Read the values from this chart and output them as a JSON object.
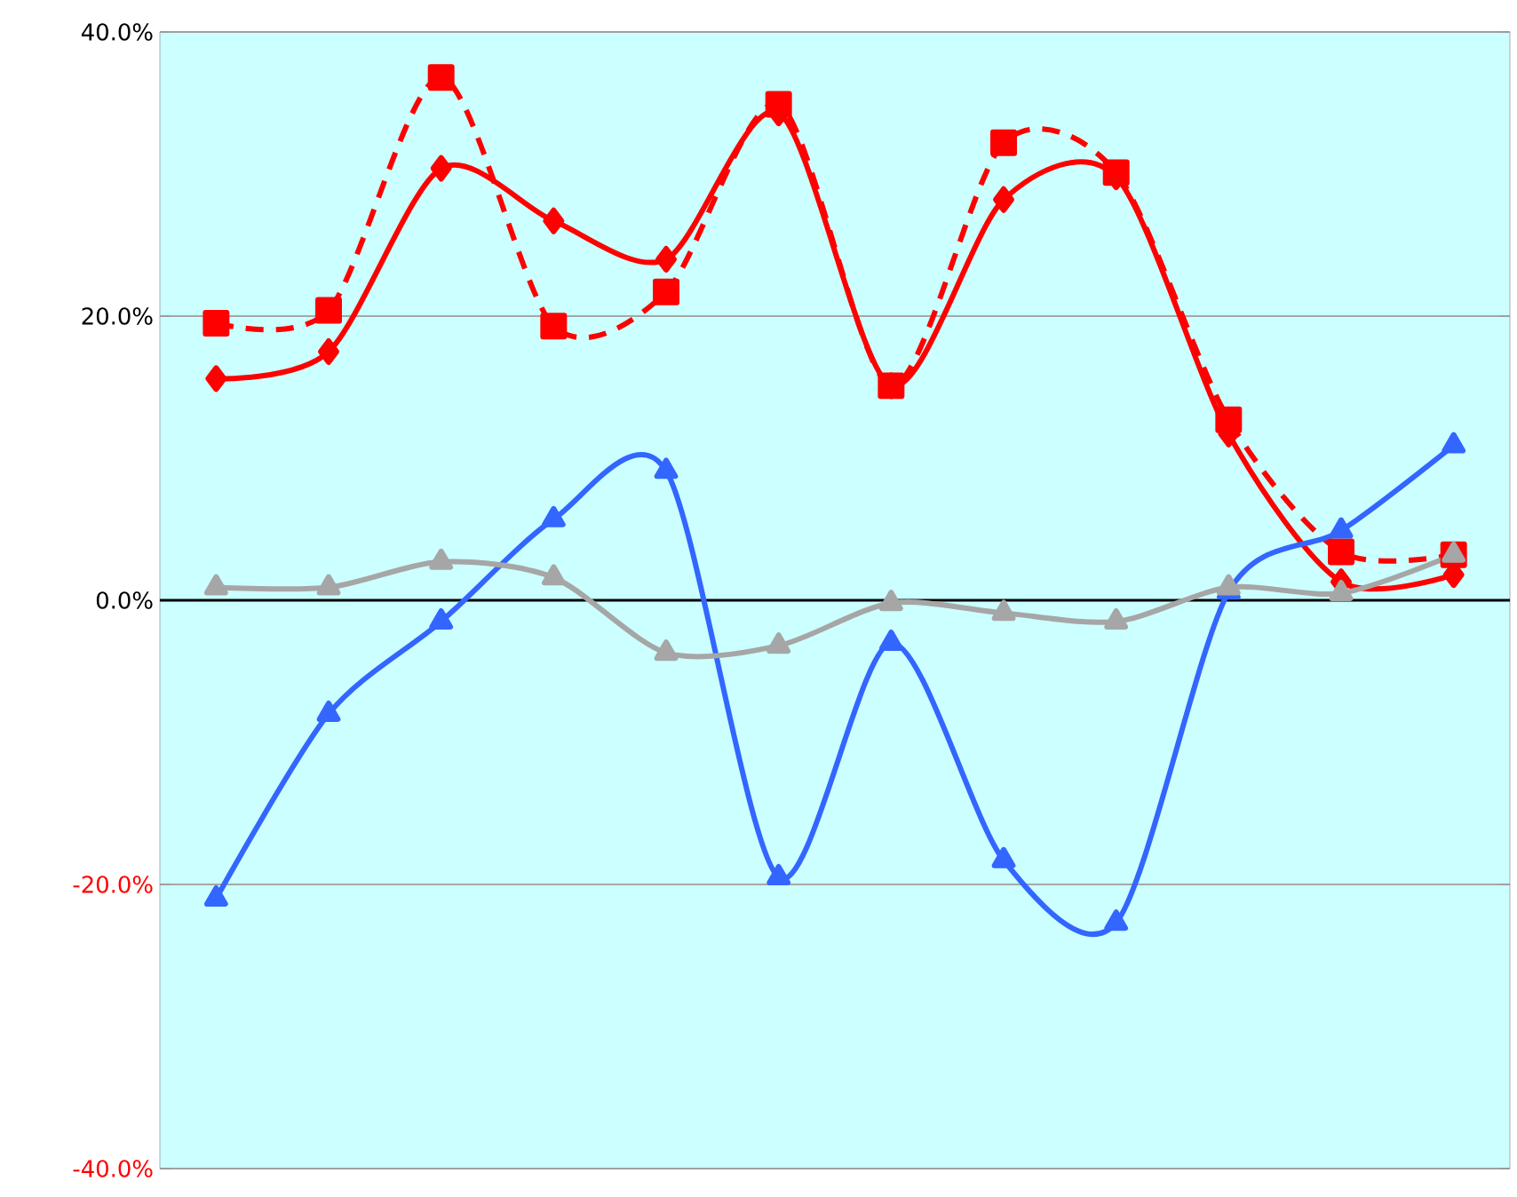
{
  "chart_data": {
    "type": "line",
    "categories": [
      null,
      null,
      null,
      null,
      null,
      null,
      null,
      null,
      null,
      null,
      null,
      null
    ],
    "series": [
      {
        "color": "#ff0000",
        "marker": "square",
        "line_style": "dashed",
        "values": [
          19.5,
          20.4,
          36.8,
          19.3,
          21.7,
          34.9,
          15.1,
          32.2,
          30.1,
          12.7,
          3.4,
          3.2
        ]
      },
      {
        "color": "#ff0000",
        "marker": "diamond",
        "line_style": "solid",
        "values": [
          15.6,
          17.5,
          30.4,
          26.7,
          24.0,
          34.3,
          15.1,
          28.2,
          29.8,
          11.7,
          1.3,
          1.8
        ]
      },
      {
        "color": "#3366ff",
        "marker": "triangle",
        "line_style": "solid",
        "values": [
          -21.0,
          -8.0,
          -1.5,
          5.7,
          9.1,
          -19.5,
          -3.0,
          -18.3,
          -22.7,
          0.6,
          4.9,
          10.9
        ]
      },
      {
        "color": "#a6a6a6",
        "marker": "triangle",
        "line_style": "solid",
        "values": [
          0.9,
          0.9,
          2.7,
          1.6,
          -3.7,
          -3.2,
          -0.2,
          -0.9,
          -1.5,
          0.9,
          0.5,
          3.2
        ]
      }
    ],
    "ylim": [
      -40,
      40
    ],
    "yticks": [
      {
        "value": -40,
        "label": "-40.0%"
      },
      {
        "value": -20,
        "label": "-20.0%"
      },
      {
        "value": 0,
        "label": "0.0%"
      },
      {
        "value": 20,
        "label": "20.0%"
      },
      {
        "value": 40,
        "label": "40.0%"
      }
    ],
    "grid": "y",
    "ref_lines": [
      {
        "axis": "y",
        "value": 0,
        "color": "#000000"
      }
    ]
  }
}
